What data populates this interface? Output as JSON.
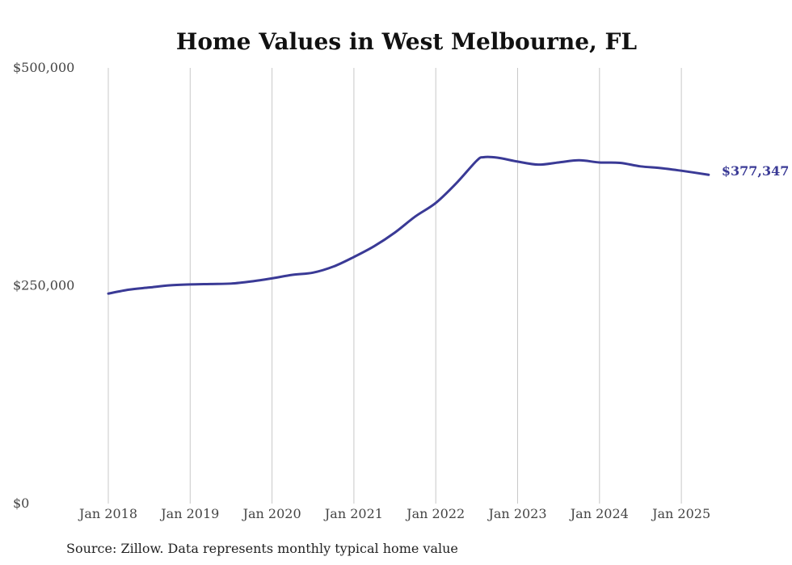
{
  "chart_data": {
    "type": "line",
    "title": "Home Values in West Melbourne, FL",
    "xlabel": "",
    "ylabel": "",
    "ylim": [
      0,
      500000
    ],
    "yticks": [
      {
        "value": 0,
        "label": "$0"
      },
      {
        "value": 250000,
        "label": "$250,000"
      },
      {
        "value": 500000,
        "label": "$500,000"
      }
    ],
    "xlim": [
      "2018-01",
      "2025-05"
    ],
    "xticks": [
      {
        "date": "2018-01",
        "label": "Jan 2018"
      },
      {
        "date": "2019-01",
        "label": "Jan 2019"
      },
      {
        "date": "2020-01",
        "label": "Jan 2020"
      },
      {
        "date": "2021-01",
        "label": "Jan 2021"
      },
      {
        "date": "2022-01",
        "label": "Jan 2022"
      },
      {
        "date": "2023-01",
        "label": "Jan 2023"
      },
      {
        "date": "2024-01",
        "label": "Jan 2024"
      },
      {
        "date": "2025-01",
        "label": "Jan 2025"
      }
    ],
    "grid": "vertical",
    "line_color": "#3a3a96",
    "end_label": "$377,347",
    "series": [
      {
        "name": "",
        "points": [
          {
            "x": "2018-01",
            "y": 241000
          },
          {
            "x": "2018-04",
            "y": 245500
          },
          {
            "x": "2018-07",
            "y": 248000
          },
          {
            "x": "2018-10",
            "y": 250500
          },
          {
            "x": "2019-01",
            "y": 251500
          },
          {
            "x": "2019-04",
            "y": 252000
          },
          {
            "x": "2019-07",
            "y": 252500
          },
          {
            "x": "2019-10",
            "y": 255000
          },
          {
            "x": "2020-01",
            "y": 258500
          },
          {
            "x": "2020-04",
            "y": 262500
          },
          {
            "x": "2020-07",
            "y": 265000
          },
          {
            "x": "2020-10",
            "y": 272000
          },
          {
            "x": "2021-01",
            "y": 283000
          },
          {
            "x": "2021-04",
            "y": 295500
          },
          {
            "x": "2021-07",
            "y": 311000
          },
          {
            "x": "2021-10",
            "y": 329500
          },
          {
            "x": "2022-01",
            "y": 345000
          },
          {
            "x": "2022-04",
            "y": 367500
          },
          {
            "x": "2022-07",
            "y": 393500
          },
          {
            "x": "2022-08",
            "y": 397500
          },
          {
            "x": "2022-10",
            "y": 397000
          },
          {
            "x": "2023-01",
            "y": 392500
          },
          {
            "x": "2023-04",
            "y": 389000
          },
          {
            "x": "2023-07",
            "y": 391500
          },
          {
            "x": "2023-10",
            "y": 394000
          },
          {
            "x": "2024-01",
            "y": 391500
          },
          {
            "x": "2024-04",
            "y": 391000
          },
          {
            "x": "2024-07",
            "y": 387000
          },
          {
            "x": "2024-10",
            "y": 385000
          },
          {
            "x": "2025-01",
            "y": 382000
          },
          {
            "x": "2025-05",
            "y": 377347
          }
        ]
      }
    ]
  },
  "footer": {
    "source": "Source: Zillow. Data represents monthly typical home value"
  }
}
